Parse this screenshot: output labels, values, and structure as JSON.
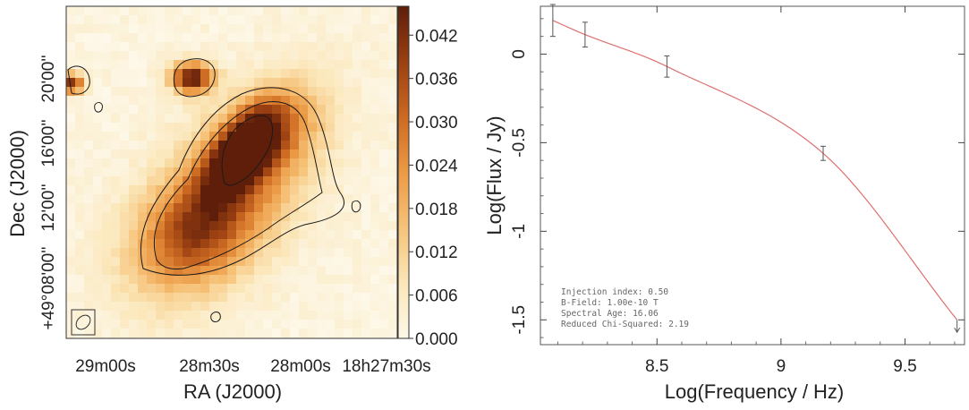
{
  "chart_data": [
    {
      "type": "heatmap",
      "xlabel": "RA (J2000)",
      "ylabel": "Dec (J2000)",
      "x_ticks": [
        "29m00s",
        "28m30s",
        "28m00s",
        "18h27m30s"
      ],
      "y_ticks": [
        "+49°08'00''",
        "12'00''",
        "16'00''",
        "20'00''"
      ],
      "colorbar": {
        "ticks": [
          "0.000",
          "0.006",
          "0.012",
          "0.018",
          "0.024",
          "0.030",
          "0.036",
          "0.042"
        ],
        "range": [
          0.0,
          0.046
        ],
        "colormap": [
          "#fdf8e9",
          "#fbe6b8",
          "#f6c37a",
          "#eb9a45",
          "#cc6a22",
          "#9a4012",
          "#5e1e0a"
        ]
      },
      "contours": true,
      "beam_ellipse": true
    },
    {
      "type": "line",
      "xlabel": "Log(Frequency / Hz)",
      "ylabel": "Log(Flux / Jy)",
      "xlim": [
        8.03,
        9.74
      ],
      "ylim": [
        -1.64,
        0.27
      ],
      "x_ticks": [
        8.5,
        9,
        9.5
      ],
      "y_ticks": [
        0,
        -0.5,
        -1,
        -1.5
      ],
      "y_tick_labels": [
        "0",
        "-0.5",
        "-1",
        "-1.5"
      ],
      "x_tick_labels": [
        "8.5",
        "9",
        "9.5"
      ],
      "points": [
        {
          "x": 8.08,
          "y": 0.19,
          "err": 0.09
        },
        {
          "x": 8.21,
          "y": 0.11,
          "err": 0.07
        },
        {
          "x": 8.54,
          "y": -0.07,
          "err": 0.06
        },
        {
          "x": 9.17,
          "y": -0.56,
          "err": 0.04
        },
        {
          "x": 9.71,
          "y": -1.5,
          "err": 0.0,
          "upper_limit": true
        }
      ],
      "model_line_color": "#e07070",
      "annotations": [
        "Injection index: 0.50",
        "B-Field: 1.00e-10 T",
        "Spectral Age: 16.06",
        "Reduced Chi-Squared: 2.19"
      ]
    }
  ]
}
